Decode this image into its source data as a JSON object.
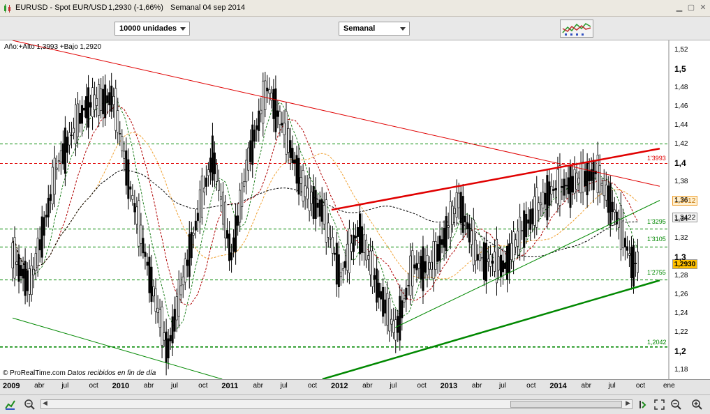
{
  "title": {
    "symbol": "EURUSD - Spot EUR/USD",
    "last": "1,2930 (-1,66%)",
    "period": "Semanal  04 sep 2014"
  },
  "toolbar": {
    "units_select": "10000 unidades",
    "period_select": "Semanal"
  },
  "chart": {
    "info_text": "Año:+Alto 1,3993 +Bajo 1,2920",
    "credit": "© ProRealTime.com",
    "credit_note": "Datos recibidos en fin de día",
    "y_ticks": [
      "1,52",
      "1,5",
      "1,48",
      "1,46",
      "1,44",
      "1,42",
      "1,4",
      "1,38",
      "1,36",
      "1,34",
      "1,32",
      "1,3",
      "1,28",
      "1,26",
      "1,24",
      "1,22",
      "1,2",
      "1,18"
    ],
    "y_ticks_bold": [
      "1,5",
      "1,4",
      "1,3",
      "1,2"
    ],
    "x_labels": [
      {
        "label": "2009",
        "year": true
      },
      {
        "label": "abr"
      },
      {
        "label": "jul"
      },
      {
        "label": "oct"
      },
      {
        "label": "2010",
        "year": true
      },
      {
        "label": "abr"
      },
      {
        "label": "jul"
      },
      {
        "label": "oct"
      },
      {
        "label": "2011",
        "year": true
      },
      {
        "label": "abr"
      },
      {
        "label": "jul"
      },
      {
        "label": "oct"
      },
      {
        "label": "2012",
        "year": true
      },
      {
        "label": "abr"
      },
      {
        "label": "jul"
      },
      {
        "label": "oct"
      },
      {
        "label": "2013",
        "year": true
      },
      {
        "label": "abr"
      },
      {
        "label": "jul"
      },
      {
        "label": "oct"
      },
      {
        "label": "2014",
        "year": true
      },
      {
        "label": "abr"
      },
      {
        "label": "jul"
      },
      {
        "label": "oct"
      },
      {
        "label": "ene"
      }
    ],
    "price_tags": {
      "ma_orange": "1,3612",
      "ma_black": "1,3422",
      "last_price": "1,2930"
    },
    "level_labels": {
      "red_level": "1'3993",
      "green_1": "1'3295",
      "green_2": "1'3105",
      "green_3": "1'2755",
      "green_4": "1,2042"
    },
    "colors": {
      "candle": "#000000",
      "resistance": "#e00000",
      "support": "#008800",
      "ma_orange": "#f0a030",
      "ma_black": "#000000",
      "ma_red": "#b00000",
      "ma_green": "#208020",
      "last_price_bg": "#ffc000"
    }
  },
  "chart_data": {
    "type": "candlestick",
    "ylim": [
      1.17,
      1.53
    ],
    "x_range": [
      "2009-01",
      "2015-01"
    ],
    "horizontal_levels": [
      {
        "value": 1.42,
        "style": "dashed",
        "color": "green"
      },
      {
        "value": 1.3993,
        "style": "dashed",
        "color": "red"
      },
      {
        "value": 1.3295,
        "style": "dashed",
        "color": "green"
      },
      {
        "value": 1.3105,
        "style": "dashed",
        "color": "green"
      },
      {
        "value": 1.2755,
        "style": "dashed",
        "color": "green"
      },
      {
        "value": 1.2042,
        "style": "dashed",
        "color": "green"
      }
    ],
    "close_series": [
      {
        "x": "2009-01",
        "y": 1.3
      },
      {
        "x": "2009-03",
        "y": 1.27
      },
      {
        "x": "2009-06",
        "y": 1.4
      },
      {
        "x": "2009-09",
        "y": 1.46
      },
      {
        "x": "2009-12",
        "y": 1.47
      },
      {
        "x": "2010-02",
        "y": 1.37
      },
      {
        "x": "2010-05",
        "y": 1.24
      },
      {
        "x": "2010-06",
        "y": 1.2
      },
      {
        "x": "2010-09",
        "y": 1.33
      },
      {
        "x": "2010-11",
        "y": 1.41
      },
      {
        "x": "2011-01",
        "y": 1.3
      },
      {
        "x": "2011-03",
        "y": 1.41
      },
      {
        "x": "2011-05",
        "y": 1.48
      },
      {
        "x": "2011-07",
        "y": 1.43
      },
      {
        "x": "2011-09",
        "y": 1.37
      },
      {
        "x": "2011-11",
        "y": 1.35
      },
      {
        "x": "2012-01",
        "y": 1.28
      },
      {
        "x": "2012-03",
        "y": 1.33
      },
      {
        "x": "2012-05",
        "y": 1.27
      },
      {
        "x": "2012-07",
        "y": 1.22
      },
      {
        "x": "2012-09",
        "y": 1.29
      },
      {
        "x": "2012-11",
        "y": 1.29
      },
      {
        "x": "2013-02",
        "y": 1.36
      },
      {
        "x": "2013-04",
        "y": 1.3
      },
      {
        "x": "2013-07",
        "y": 1.29
      },
      {
        "x": "2013-09",
        "y": 1.33
      },
      {
        "x": "2013-12",
        "y": 1.37
      },
      {
        "x": "2014-03",
        "y": 1.38
      },
      {
        "x": "2014-05",
        "y": 1.39
      },
      {
        "x": "2014-07",
        "y": 1.35
      },
      {
        "x": "2014-09",
        "y": 1.293
      }
    ],
    "trendlines": [
      {
        "name": "",
        "color": "red",
        "from": {
          "x": "2009-01",
          "y": 1.53
        },
        "to": {
          "x": "2014-12",
          "y": 1.375
        }
      },
      {
        "name": "",
        "color": "red",
        "from": {
          "x": "2011-12",
          "y": 1.35
        },
        "to": {
          "x": "2014-12",
          "y": 1.415
        }
      },
      {
        "name": "",
        "color": "green",
        "from": {
          "x": "2011-11",
          "y": 1.17
        },
        "to": {
          "x": "2014-12",
          "y": 1.275
        }
      },
      {
        "name": "",
        "color": "green",
        "from": {
          "x": "2012-07",
          "y": 1.225
        },
        "to": {
          "x": "2014-12",
          "y": 1.36
        }
      },
      {
        "name": "",
        "color": "green",
        "from": {
          "x": "2009-01",
          "y": 1.235
        },
        "to": {
          "x": "2010-12",
          "y": 1.17
        }
      }
    ]
  }
}
